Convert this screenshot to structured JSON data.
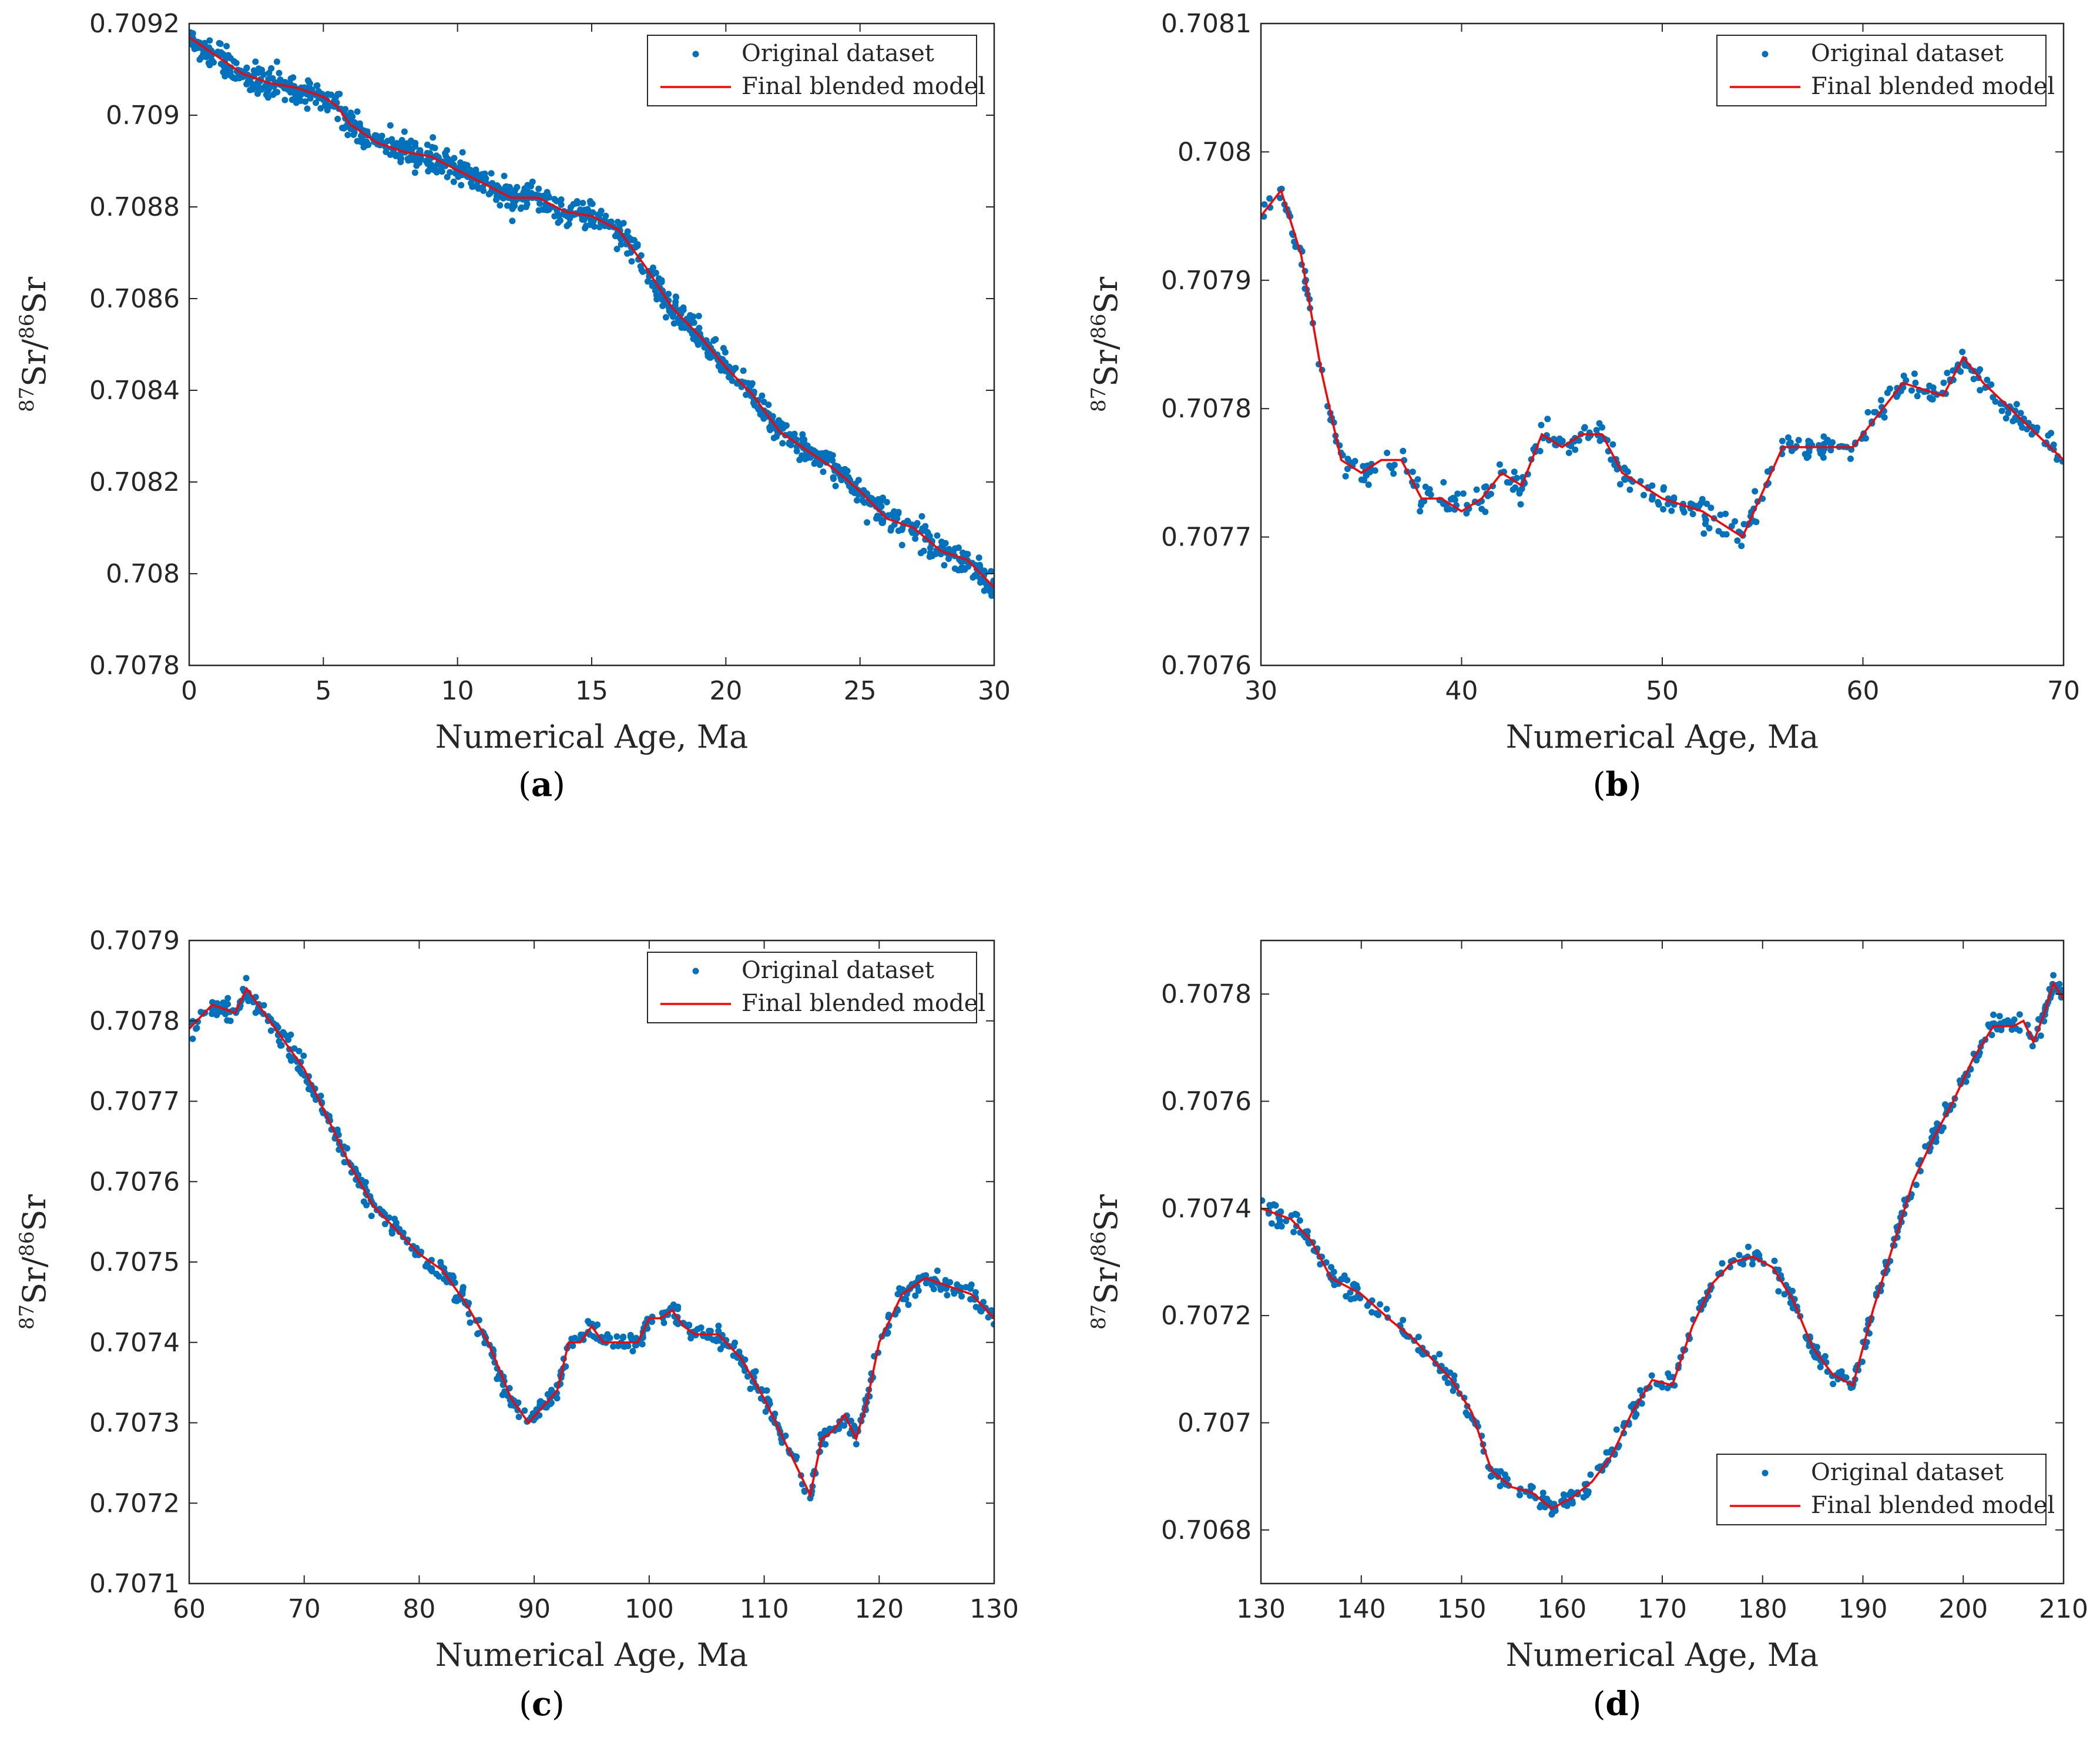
{
  "colors": {
    "points": "#0072BD",
    "model": "#FF0000",
    "axis": "#262626",
    "background": "#FFFFFF"
  },
  "legend": {
    "points": "Original dataset",
    "model": "Final blended model"
  },
  "chart_data": [
    {
      "id": "a",
      "caption": "(a)",
      "type": "scatter",
      "xlabel": "Numerical Age, Ma",
      "ylabel": "87Sr/86Sr",
      "xlim": [
        0,
        30
      ],
      "ylim": [
        0.7078,
        0.7092
      ],
      "xticks": [
        "0",
        "5",
        "10",
        "15",
        "20",
        "25",
        "30"
      ],
      "yticks": [
        "0.7078",
        "0.708",
        "0.7082",
        "0.7084",
        "0.7086",
        "0.7088",
        "0.709",
        "0.7092"
      ],
      "legend_position": "top-right",
      "series": [
        {
          "name": "Original dataset",
          "kind": "scatter",
          "scatter_spread": 1.5e-05,
          "count": 1100
        },
        {
          "name": "Final blended model",
          "kind": "line",
          "x": [
            0,
            0.5,
            1,
            1.5,
            2,
            3,
            4,
            5,
            5.5,
            6,
            7,
            8,
            9,
            10,
            11,
            12,
            13,
            14,
            15,
            16,
            17,
            18,
            19,
            20,
            21,
            22,
            23,
            24,
            25,
            26,
            27,
            28,
            29,
            30
          ],
          "y": [
            0.70917,
            0.70915,
            0.70913,
            0.70911,
            0.70909,
            0.70907,
            0.70906,
            0.70904,
            0.70902,
            0.70898,
            0.70894,
            0.70892,
            0.70891,
            0.70888,
            0.70885,
            0.70882,
            0.70882,
            0.70879,
            0.70878,
            0.70875,
            0.70867,
            0.70858,
            0.70852,
            0.70845,
            0.70839,
            0.70831,
            0.70827,
            0.70823,
            0.70818,
            0.70812,
            0.7081,
            0.70805,
            0.70803,
            0.70797
          ]
        }
      ]
    },
    {
      "id": "b",
      "caption": "(b)",
      "type": "scatter",
      "xlabel": "Numerical Age, Ma",
      "ylabel": "87Sr/86Sr",
      "xlim": [
        30,
        70
      ],
      "ylim": [
        0.7076,
        0.7081
      ],
      "xticks": [
        "30",
        "40",
        "50",
        "60",
        "70"
      ],
      "yticks": [
        "0.7076",
        "0.7077",
        "0.7078",
        "0.7079",
        "0.708",
        "0.7081"
      ],
      "legend_position": "top-right",
      "series": [
        {
          "name": "Original dataset",
          "kind": "scatter",
          "scatter_spread": 5.5e-06,
          "count": 420
        },
        {
          "name": "Final blended model",
          "kind": "line",
          "x": [
            30,
            31,
            32,
            33,
            34,
            35,
            36,
            37,
            38,
            39,
            40,
            41,
            42,
            43,
            44,
            45,
            46,
            47,
            48,
            50,
            52,
            54,
            56,
            58,
            59.5,
            62,
            64,
            65,
            66,
            68,
            70
          ],
          "y": [
            0.70795,
            0.70797,
            0.70792,
            0.70783,
            0.70776,
            0.70775,
            0.70776,
            0.70776,
            0.70773,
            0.70773,
            0.70772,
            0.70773,
            0.70775,
            0.70774,
            0.70778,
            0.70777,
            0.70778,
            0.70778,
            0.70775,
            0.70773,
            0.70772,
            0.7077,
            0.70777,
            0.70777,
            0.70777,
            0.70782,
            0.70781,
            0.70784,
            0.70782,
            0.70779,
            0.70776
          ]
        }
      ]
    },
    {
      "id": "c",
      "caption": "(c)",
      "type": "scatter",
      "xlabel": "Numerical Age, Ma",
      "ylabel": "87Sr/86Sr",
      "xlim": [
        60,
        130
      ],
      "ylim": [
        0.7071,
        0.7079
      ],
      "xticks": [
        "60",
        "70",
        "80",
        "90",
        "100",
        "110",
        "120",
        "130"
      ],
      "yticks": [
        "0.7071",
        "0.7072",
        "0.7073",
        "0.7074",
        "0.7075",
        "0.7076",
        "0.7077",
        "0.7078",
        "0.7079"
      ],
      "legend_position": "top-right",
      "series": [
        {
          "name": "Original dataset",
          "kind": "scatter",
          "scatter_spread": 6.5e-06,
          "count": 650
        },
        {
          "name": "Final blended model",
          "kind": "line",
          "x": [
            60,
            62,
            64,
            65,
            66,
            68,
            70,
            72,
            74,
            76,
            78,
            80,
            82,
            84,
            86,
            88,
            89.5,
            92,
            93,
            94,
            95,
            96,
            99,
            100,
            101,
            102,
            103,
            104,
            106,
            108,
            110,
            112,
            114,
            115,
            116,
            117,
            118,
            119,
            120,
            122,
            124,
            126,
            128,
            130
          ],
          "y": [
            0.70779,
            0.70782,
            0.70781,
            0.70784,
            0.70782,
            0.70778,
            0.70774,
            0.70768,
            0.70762,
            0.70757,
            0.70754,
            0.70751,
            0.70749,
            0.70745,
            0.7074,
            0.70733,
            0.7073,
            0.70734,
            0.7074,
            0.7074,
            0.70742,
            0.7074,
            0.7074,
            0.70743,
            0.70743,
            0.70744,
            0.70742,
            0.70741,
            0.70741,
            0.70738,
            0.70733,
            0.70727,
            0.70721,
            0.70728,
            0.70729,
            0.70731,
            0.70728,
            0.70733,
            0.7074,
            0.70746,
            0.70748,
            0.70747,
            0.70746,
            0.70743
          ]
        }
      ]
    },
    {
      "id": "d",
      "caption": "(d)",
      "type": "scatter",
      "xlabel": "Numerical Age, Ma",
      "ylabel": "87Sr/86Sr",
      "xlim": [
        130,
        210
      ],
      "ylim": [
        0.7067,
        0.7079
      ],
      "xticks": [
        "130",
        "140",
        "150",
        "160",
        "170",
        "180",
        "190",
        "200",
        "210"
      ],
      "yticks": [
        "0.7068",
        "0.707",
        "0.7072",
        "0.7074",
        "0.7076",
        "0.7078"
      ],
      "legend_position": "bottom-right",
      "series": [
        {
          "name": "Original dataset",
          "kind": "scatter",
          "scatter_spread": 9e-06,
          "count": 520
        },
        {
          "name": "Final blended model",
          "kind": "line",
          "x": [
            130,
            133,
            135,
            137,
            140,
            143,
            145,
            147,
            149,
            151,
            153,
            155,
            157,
            159,
            161,
            163,
            165,
            167,
            169,
            171,
            173,
            175,
            177,
            179,
            181,
            183,
            185,
            187,
            189,
            191,
            193,
            195,
            197,
            199,
            201,
            203,
            205,
            206,
            207,
            208,
            209,
            210
          ],
          "y": [
            0.7074,
            0.70738,
            0.70734,
            0.70727,
            0.70724,
            0.70719,
            0.70716,
            0.70712,
            0.70708,
            0.70702,
            0.70691,
            0.70688,
            0.70687,
            0.70684,
            0.70686,
            0.70689,
            0.70694,
            0.70702,
            0.70708,
            0.70707,
            0.70718,
            0.70726,
            0.7073,
            0.70731,
            0.70729,
            0.70723,
            0.70714,
            0.70709,
            0.70707,
            0.70721,
            0.70733,
            0.70745,
            0.70753,
            0.7076,
            0.70768,
            0.70774,
            0.70774,
            0.70775,
            0.70771,
            0.70776,
            0.70782,
            0.70779
          ]
        }
      ]
    }
  ]
}
